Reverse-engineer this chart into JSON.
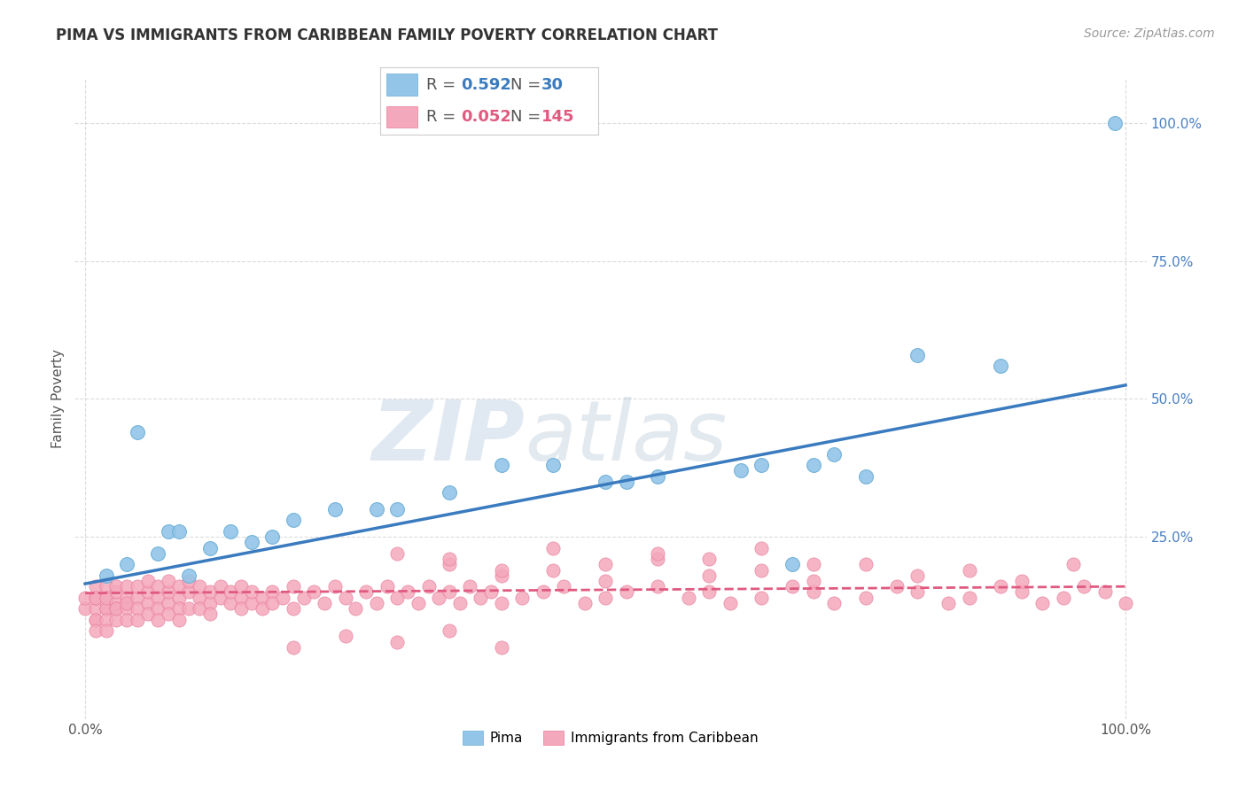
{
  "title": "PIMA VS IMMIGRANTS FROM CARIBBEAN FAMILY POVERTY CORRELATION CHART",
  "source_text": "Source: ZipAtlas.com",
  "ylabel": "Family Poverty",
  "watermark_zip": "ZIP",
  "watermark_atlas": "atlas",
  "xlim": [
    -0.01,
    1.02
  ],
  "ylim": [
    -0.08,
    1.08
  ],
  "pima_color": "#92c5e8",
  "pima_edge_color": "#6aaed6",
  "caribbean_color": "#f4a8bb",
  "caribbean_edge_color": "#e87a9a",
  "pima_line_color": "#3a7bbf",
  "caribbean_line_color": "#e05a80",
  "pima_R": 0.592,
  "pima_N": 30,
  "caribbean_R": 0.052,
  "caribbean_N": 145,
  "pima_line_x0": 0.0,
  "pima_line_y0": 0.165,
  "pima_line_x1": 1.0,
  "pima_line_y1": 0.525,
  "carib_line_x0": 0.0,
  "carib_line_y0": 0.148,
  "carib_line_x1": 1.0,
  "carib_line_y1": 0.16,
  "pima_x": [
    0.02,
    0.04,
    0.05,
    0.07,
    0.08,
    0.09,
    0.1,
    0.12,
    0.14,
    0.16,
    0.18,
    0.2,
    0.24,
    0.28,
    0.3,
    0.35,
    0.4,
    0.45,
    0.5,
    0.52,
    0.55,
    0.63,
    0.65,
    0.68,
    0.7,
    0.72,
    0.75,
    0.8,
    0.88,
    0.99
  ],
  "pima_y": [
    0.18,
    0.2,
    0.44,
    0.22,
    0.26,
    0.26,
    0.18,
    0.23,
    0.26,
    0.24,
    0.25,
    0.28,
    0.3,
    0.3,
    0.3,
    0.33,
    0.38,
    0.38,
    0.35,
    0.35,
    0.36,
    0.37,
    0.38,
    0.2,
    0.38,
    0.4,
    0.36,
    0.58,
    0.56,
    1.0
  ],
  "carib_x": [
    0.0,
    0.0,
    0.01,
    0.01,
    0.01,
    0.01,
    0.01,
    0.01,
    0.01,
    0.02,
    0.02,
    0.02,
    0.02,
    0.02,
    0.02,
    0.02,
    0.03,
    0.03,
    0.03,
    0.03,
    0.03,
    0.03,
    0.04,
    0.04,
    0.04,
    0.04,
    0.04,
    0.05,
    0.05,
    0.05,
    0.05,
    0.06,
    0.06,
    0.06,
    0.06,
    0.07,
    0.07,
    0.07,
    0.07,
    0.08,
    0.08,
    0.08,
    0.08,
    0.09,
    0.09,
    0.09,
    0.09,
    0.1,
    0.1,
    0.1,
    0.11,
    0.11,
    0.11,
    0.12,
    0.12,
    0.12,
    0.13,
    0.13,
    0.14,
    0.14,
    0.15,
    0.15,
    0.15,
    0.16,
    0.16,
    0.17,
    0.17,
    0.18,
    0.18,
    0.19,
    0.2,
    0.2,
    0.21,
    0.22,
    0.23,
    0.24,
    0.25,
    0.26,
    0.27,
    0.28,
    0.29,
    0.3,
    0.31,
    0.32,
    0.33,
    0.34,
    0.35,
    0.36,
    0.37,
    0.38,
    0.39,
    0.4,
    0.42,
    0.44,
    0.46,
    0.48,
    0.5,
    0.52,
    0.55,
    0.58,
    0.6,
    0.62,
    0.65,
    0.68,
    0.7,
    0.72,
    0.75,
    0.78,
    0.8,
    0.83,
    0.85,
    0.88,
    0.9,
    0.92,
    0.94,
    0.96,
    0.98,
    1.0,
    0.35,
    0.4,
    0.45,
    0.5,
    0.55,
    0.6,
    0.65,
    0.7,
    0.75,
    0.8,
    0.85,
    0.9,
    0.95,
    0.3,
    0.35,
    0.4,
    0.45,
    0.5,
    0.55,
    0.6,
    0.65,
    0.7,
    0.2,
    0.25,
    0.3,
    0.35,
    0.4
  ],
  "carib_y": [
    0.12,
    0.14,
    0.1,
    0.12,
    0.14,
    0.16,
    0.14,
    0.1,
    0.08,
    0.12,
    0.14,
    0.16,
    0.12,
    0.1,
    0.08,
    0.14,
    0.13,
    0.15,
    0.12,
    0.1,
    0.16,
    0.12,
    0.14,
    0.12,
    0.1,
    0.16,
    0.13,
    0.14,
    0.12,
    0.1,
    0.16,
    0.13,
    0.15,
    0.11,
    0.17,
    0.14,
    0.12,
    0.1,
    0.16,
    0.13,
    0.15,
    0.11,
    0.17,
    0.14,
    0.12,
    0.1,
    0.16,
    0.15,
    0.12,
    0.17,
    0.14,
    0.12,
    0.16,
    0.13,
    0.15,
    0.11,
    0.14,
    0.16,
    0.13,
    0.15,
    0.14,
    0.12,
    0.16,
    0.13,
    0.15,
    0.14,
    0.12,
    0.15,
    0.13,
    0.14,
    0.16,
    0.12,
    0.14,
    0.15,
    0.13,
    0.16,
    0.14,
    0.12,
    0.15,
    0.13,
    0.16,
    0.14,
    0.15,
    0.13,
    0.16,
    0.14,
    0.15,
    0.13,
    0.16,
    0.14,
    0.15,
    0.13,
    0.14,
    0.15,
    0.16,
    0.13,
    0.14,
    0.15,
    0.16,
    0.14,
    0.15,
    0.13,
    0.14,
    0.16,
    0.15,
    0.13,
    0.14,
    0.16,
    0.15,
    0.13,
    0.14,
    0.16,
    0.15,
    0.13,
    0.14,
    0.16,
    0.15,
    0.13,
    0.2,
    0.18,
    0.19,
    0.17,
    0.21,
    0.18,
    0.19,
    0.17,
    0.2,
    0.18,
    0.19,
    0.17,
    0.2,
    0.22,
    0.21,
    0.19,
    0.23,
    0.2,
    0.22,
    0.21,
    0.23,
    0.2,
    0.05,
    0.07,
    0.06,
    0.08,
    0.05
  ],
  "grid_color": "#cccccc",
  "background_color": "#ffffff",
  "title_fontsize": 12,
  "tick_fontsize": 11,
  "source_fontsize": 10
}
